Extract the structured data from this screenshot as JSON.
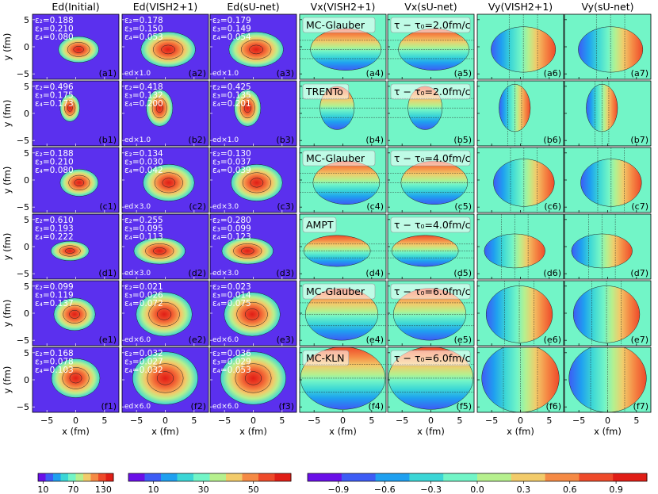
{
  "figure": {
    "column_titles": [
      "Ed(Initial)",
      "Ed(VISH2+1)",
      "Ed(sU-net)",
      "Vx(VISH2+1)",
      "Vx(sU-net)",
      "Vy(VISH2+1)",
      "Vy(sU-net)"
    ],
    "y_axis_label": "y (fm)",
    "x_axis_label": "x (fm)",
    "tick_values": [
      "−5",
      "0",
      "5"
    ]
  },
  "chart_data": {
    "type": "heatmap",
    "rows": [
      {
        "id": "a",
        "model": "MC-Glauber",
        "tau": "τ − τ₀=2.0fm/c",
        "eps_initial": [
          "ε₂=0.188",
          "ε₃=0.210",
          "ε₄=0.080"
        ],
        "eps_vish": [
          "ε₂=0.178",
          "ε₃=0.150",
          "ε₄=0.053"
        ],
        "eps_sunet": [
          "ε₂=0.179",
          "ε₃=0.149",
          "ε₄=0.054"
        ],
        "scale": "ed×1.0"
      },
      {
        "id": "b",
        "model": "TRENTo",
        "tau": "τ − τ₀=2.0fm/c",
        "eps_initial": [
          "ε₂=0.496",
          "ε₃=0.175",
          "ε₄=0.173"
        ],
        "eps_vish": [
          "ε₂=0.418",
          "ε₃=0.132",
          "ε₄=0.200"
        ],
        "eps_sunet": [
          "ε₂=0.425",
          "ε₃=0.135",
          "ε₄=0.201"
        ],
        "scale": "ed×1.0"
      },
      {
        "id": "c",
        "model": "MC-Glauber",
        "tau": "τ − τ₀=4.0fm/c",
        "eps_initial": [
          "ε₂=0.188",
          "ε₃=0.210",
          "ε₄=0.080"
        ],
        "eps_vish": [
          "ε₂=0.134",
          "ε₃=0.030",
          "ε₄=0.042"
        ],
        "eps_sunet": [
          "ε₂=0.130",
          "ε₃=0.037",
          "ε₄=0.039"
        ],
        "scale": "ed×3.0"
      },
      {
        "id": "d",
        "model": "AMPT",
        "tau": "τ − τ₀=4.0fm/c",
        "eps_initial": [
          "ε₂=0.610",
          "ε₃=0.193",
          "ε₄=0.222"
        ],
        "eps_vish": [
          "ε₂=0.255",
          "ε₃=0.095",
          "ε₄=0.113"
        ],
        "eps_sunet": [
          "ε₂=0.280",
          "ε₃=0.099",
          "ε₄=0.123"
        ],
        "scale": "ed×3.0"
      },
      {
        "id": "e",
        "model": "MC-Glauber",
        "tau": "τ − τ₀=6.0fm/c",
        "eps_initial": [
          "ε₂=0.099",
          "ε₃=0.119",
          "ε₄=0.137"
        ],
        "eps_vish": [
          "ε₂=0.021",
          "ε₃=0.026",
          "ε₄=0.072"
        ],
        "eps_sunet": [
          "ε₂=0.023",
          "ε₃=0.014",
          "ε₄=0.075"
        ],
        "scale": "ed×6.0"
      },
      {
        "id": "f",
        "model": "MC-KLN",
        "tau": "τ − τ₀=6.0fm/c",
        "eps_initial": [
          "ε₂=0.168",
          "ε₃=0.078",
          "ε₄=0.103"
        ],
        "eps_vish": [
          "ε₂=0.032",
          "ε₃=0.027",
          "ε₄=0.032"
        ],
        "eps_sunet": [
          "ε₂=0.036",
          "ε₃=0.029",
          "ε₄=0.053"
        ],
        "scale": "ed×6.0"
      }
    ],
    "x_range": [
      -7.5,
      7.5
    ],
    "y_range": [
      -6,
      6
    ],
    "x_ticks": [
      -5,
      0,
      5
    ],
    "y_ticks": [
      -5,
      0,
      5
    ],
    "colorbars": [
      {
        "name": "Ed(Initial)",
        "range": [
          0,
          150
        ],
        "ticks": [
          10,
          70,
          130
        ],
        "tick_labels": [
          "10",
          "70",
          "130"
        ]
      },
      {
        "name": "Ed",
        "range": [
          0,
          65
        ],
        "ticks": [
          10,
          30,
          50
        ],
        "tick_labels": [
          "10",
          "30",
          "50"
        ]
      },
      {
        "name": "V",
        "range": [
          -1.1,
          1.1
        ],
        "ticks": [
          -0.9,
          -0.6,
          -0.3,
          0.0,
          0.3,
          0.6,
          0.9
        ],
        "tick_labels": [
          "−0.9",
          "−0.6",
          "−0.3",
          "0.0",
          "0.3",
          "0.6",
          "0.9"
        ]
      }
    ],
    "colors": {
      "background": "#5b30ee",
      "velocity_zero": "#72f5c7",
      "palette": [
        "#6a0fe8",
        "#3d5cf5",
        "#1fa0f0",
        "#3bd6d6",
        "#72f5c7",
        "#b6f08e",
        "#f2cb6a",
        "#f58a45",
        "#ee4a2a",
        "#e01e16"
      ]
    }
  }
}
